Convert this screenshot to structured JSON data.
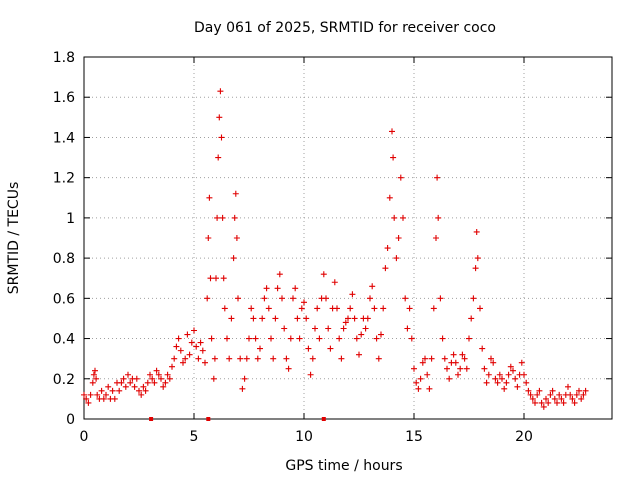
{
  "chart_data": {
    "type": "scatter",
    "title": "Day 061 of 2025, SRMTID for receiver coco",
    "xlabel": "GPS time / hours",
    "ylabel": "SRMTID / TECUs",
    "xlim": [
      0,
      24
    ],
    "ylim": [
      0,
      1.8
    ],
    "xticks": [
      0,
      5,
      10,
      15,
      20
    ],
    "yticks": [
      0,
      0.2,
      0.4,
      0.6,
      0.8,
      1,
      1.2,
      1.4,
      1.6,
      1.8
    ],
    "grid": true,
    "marker": "+",
    "color": "#e00000",
    "series": [
      {
        "name": "SRMTID",
        "points": [
          [
            0.0,
            0.12
          ],
          [
            0.1,
            0.1
          ],
          [
            0.2,
            0.08
          ],
          [
            0.3,
            0.12
          ],
          [
            0.4,
            0.18
          ],
          [
            0.45,
            0.22
          ],
          [
            0.5,
            0.24
          ],
          [
            0.55,
            0.2
          ],
          [
            0.6,
            0.12
          ],
          [
            0.7,
            0.1
          ],
          [
            0.8,
            0.14
          ],
          [
            0.9,
            0.1
          ],
          [
            1.0,
            0.12
          ],
          [
            1.1,
            0.16
          ],
          [
            1.2,
            0.1
          ],
          [
            1.3,
            0.14
          ],
          [
            1.4,
            0.1
          ],
          [
            1.5,
            0.18
          ],
          [
            1.6,
            0.14
          ],
          [
            1.7,
            0.18
          ],
          [
            1.8,
            0.2
          ],
          [
            1.9,
            0.16
          ],
          [
            2.0,
            0.22
          ],
          [
            2.1,
            0.18
          ],
          [
            2.2,
            0.2
          ],
          [
            2.3,
            0.16
          ],
          [
            2.4,
            0.2
          ],
          [
            2.5,
            0.14
          ],
          [
            2.6,
            0.12
          ],
          [
            2.7,
            0.16
          ],
          [
            2.8,
            0.14
          ],
          [
            2.9,
            0.18
          ],
          [
            3.0,
            0.22
          ],
          [
            3.1,
            0.2
          ],
          [
            3.2,
            0.18
          ],
          [
            3.3,
            0.24
          ],
          [
            3.4,
            0.22
          ],
          [
            3.5,
            0.2
          ],
          [
            3.6,
            0.16
          ],
          [
            3.7,
            0.18
          ],
          [
            3.8,
            0.22
          ],
          [
            3.9,
            0.2
          ],
          [
            4.0,
            0.26
          ],
          [
            4.1,
            0.3
          ],
          [
            4.2,
            0.36
          ],
          [
            4.3,
            0.4
          ],
          [
            4.4,
            0.34
          ],
          [
            4.5,
            0.28
          ],
          [
            4.6,
            0.3
          ],
          [
            4.7,
            0.42
          ],
          [
            4.8,
            0.32
          ],
          [
            4.9,
            0.38
          ],
          [
            5.0,
            0.44
          ],
          [
            5.1,
            0.36
          ],
          [
            5.2,
            0.3
          ],
          [
            5.3,
            0.38
          ],
          [
            5.4,
            0.34
          ],
          [
            5.5,
            0.28
          ],
          [
            5.6,
            0.6
          ],
          [
            5.65,
            0.9
          ],
          [
            5.7,
            1.1
          ],
          [
            5.75,
            0.7
          ],
          [
            5.8,
            0.4
          ],
          [
            5.9,
            0.2
          ],
          [
            5.95,
            0.3
          ],
          [
            6.0,
            0.7
          ],
          [
            6.05,
            1.0
          ],
          [
            6.1,
            1.3
          ],
          [
            6.15,
            1.5
          ],
          [
            6.2,
            1.63
          ],
          [
            6.25,
            1.4
          ],
          [
            6.3,
            1.0
          ],
          [
            6.35,
            0.7
          ],
          [
            6.4,
            0.55
          ],
          [
            6.5,
            0.4
          ],
          [
            6.6,
            0.3
          ],
          [
            6.7,
            0.5
          ],
          [
            6.8,
            0.8
          ],
          [
            6.85,
            1.0
          ],
          [
            6.9,
            1.12
          ],
          [
            6.95,
            0.9
          ],
          [
            7.0,
            0.6
          ],
          [
            7.1,
            0.3
          ],
          [
            7.2,
            0.15
          ],
          [
            7.3,
            0.2
          ],
          [
            7.4,
            0.3
          ],
          [
            7.5,
            0.4
          ],
          [
            7.6,
            0.55
          ],
          [
            7.7,
            0.5
          ],
          [
            7.8,
            0.4
          ],
          [
            7.9,
            0.3
          ],
          [
            8.0,
            0.35
          ],
          [
            8.1,
            0.5
          ],
          [
            8.2,
            0.6
          ],
          [
            8.3,
            0.65
          ],
          [
            8.4,
            0.55
          ],
          [
            8.5,
            0.4
          ],
          [
            8.6,
            0.3
          ],
          [
            8.7,
            0.5
          ],
          [
            8.8,
            0.65
          ],
          [
            8.9,
            0.72
          ],
          [
            9.0,
            0.6
          ],
          [
            9.1,
            0.45
          ],
          [
            9.2,
            0.3
          ],
          [
            9.3,
            0.25
          ],
          [
            9.4,
            0.4
          ],
          [
            9.5,
            0.6
          ],
          [
            9.6,
            0.65
          ],
          [
            9.7,
            0.5
          ],
          [
            9.8,
            0.4
          ],
          [
            9.9,
            0.55
          ],
          [
            10.0,
            0.58
          ],
          [
            10.1,
            0.5
          ],
          [
            10.2,
            0.35
          ],
          [
            10.3,
            0.22
          ],
          [
            10.4,
            0.3
          ],
          [
            10.5,
            0.45
          ],
          [
            10.6,
            0.55
          ],
          [
            10.7,
            0.4
          ],
          [
            10.8,
            0.6
          ],
          [
            10.9,
            0.72
          ],
          [
            11.0,
            0.6
          ],
          [
            11.1,
            0.45
          ],
          [
            11.2,
            0.35
          ],
          [
            11.3,
            0.55
          ],
          [
            11.4,
            0.68
          ],
          [
            11.5,
            0.55
          ],
          [
            11.6,
            0.4
          ],
          [
            11.7,
            0.3
          ],
          [
            11.8,
            0.45
          ],
          [
            11.9,
            0.48
          ],
          [
            12.0,
            0.5
          ],
          [
            12.1,
            0.55
          ],
          [
            12.2,
            0.62
          ],
          [
            12.3,
            0.5
          ],
          [
            12.4,
            0.4
          ],
          [
            12.5,
            0.32
          ],
          [
            12.6,
            0.42
          ],
          [
            12.7,
            0.5
          ],
          [
            12.8,
            0.45
          ],
          [
            12.9,
            0.5
          ],
          [
            13.0,
            0.6
          ],
          [
            13.1,
            0.66
          ],
          [
            13.2,
            0.55
          ],
          [
            13.3,
            0.4
          ],
          [
            13.4,
            0.3
          ],
          [
            13.5,
            0.42
          ],
          [
            13.6,
            0.55
          ],
          [
            13.7,
            0.75
          ],
          [
            13.8,
            0.85
          ],
          [
            13.9,
            1.1
          ],
          [
            14.0,
            1.43
          ],
          [
            14.05,
            1.3
          ],
          [
            14.1,
            1.0
          ],
          [
            14.2,
            0.8
          ],
          [
            14.3,
            0.9
          ],
          [
            14.4,
            1.2
          ],
          [
            14.5,
            1.0
          ],
          [
            14.6,
            0.6
          ],
          [
            14.7,
            0.45
          ],
          [
            14.8,
            0.55
          ],
          [
            14.9,
            0.4
          ],
          [
            15.0,
            0.25
          ],
          [
            15.1,
            0.18
          ],
          [
            15.2,
            0.15
          ],
          [
            15.3,
            0.2
          ],
          [
            15.4,
            0.28
          ],
          [
            15.5,
            0.3
          ],
          [
            15.6,
            0.22
          ],
          [
            15.7,
            0.15
          ],
          [
            15.8,
            0.3
          ],
          [
            15.9,
            0.55
          ],
          [
            16.0,
            0.9
          ],
          [
            16.05,
            1.2
          ],
          [
            16.1,
            1.0
          ],
          [
            16.2,
            0.6
          ],
          [
            16.3,
            0.4
          ],
          [
            16.4,
            0.3
          ],
          [
            16.5,
            0.25
          ],
          [
            16.6,
            0.2
          ],
          [
            16.7,
            0.28
          ],
          [
            16.8,
            0.32
          ],
          [
            16.9,
            0.28
          ],
          [
            17.0,
            0.22
          ],
          [
            17.1,
            0.25
          ],
          [
            17.2,
            0.32
          ],
          [
            17.3,
            0.3
          ],
          [
            17.4,
            0.25
          ],
          [
            17.5,
            0.4
          ],
          [
            17.6,
            0.5
          ],
          [
            17.7,
            0.6
          ],
          [
            17.8,
            0.75
          ],
          [
            17.85,
            0.93
          ],
          [
            17.9,
            0.8
          ],
          [
            18.0,
            0.55
          ],
          [
            18.1,
            0.35
          ],
          [
            18.2,
            0.25
          ],
          [
            18.3,
            0.18
          ],
          [
            18.4,
            0.22
          ],
          [
            18.5,
            0.3
          ],
          [
            18.6,
            0.28
          ],
          [
            18.7,
            0.2
          ],
          [
            18.8,
            0.18
          ],
          [
            18.9,
            0.22
          ],
          [
            19.0,
            0.2
          ],
          [
            19.1,
            0.15
          ],
          [
            19.2,
            0.18
          ],
          [
            19.3,
            0.22
          ],
          [
            19.4,
            0.26
          ],
          [
            19.5,
            0.24
          ],
          [
            19.6,
            0.2
          ],
          [
            19.7,
            0.16
          ],
          [
            19.8,
            0.22
          ],
          [
            19.9,
            0.28
          ],
          [
            20.0,
            0.22
          ],
          [
            20.1,
            0.18
          ],
          [
            20.2,
            0.14
          ],
          [
            20.3,
            0.12
          ],
          [
            20.4,
            0.1
          ],
          [
            20.5,
            0.08
          ],
          [
            20.6,
            0.12
          ],
          [
            20.7,
            0.14
          ],
          [
            20.8,
            0.08
          ],
          [
            20.9,
            0.06
          ],
          [
            21.0,
            0.1
          ],
          [
            21.1,
            0.08
          ],
          [
            21.2,
            0.12
          ],
          [
            21.3,
            0.14
          ],
          [
            21.4,
            0.1
          ],
          [
            21.5,
            0.08
          ],
          [
            21.6,
            0.12
          ],
          [
            21.7,
            0.1
          ],
          [
            21.8,
            0.08
          ],
          [
            21.9,
            0.12
          ],
          [
            22.0,
            0.16
          ],
          [
            22.1,
            0.12
          ],
          [
            22.2,
            0.1
          ],
          [
            22.3,
            0.08
          ],
          [
            22.4,
            0.12
          ],
          [
            22.5,
            0.14
          ],
          [
            22.6,
            0.1
          ],
          [
            22.7,
            0.12
          ],
          [
            22.8,
            0.14
          ]
        ]
      }
    ],
    "gap_markers_x": [
      3.05,
      5.65,
      10.9
    ]
  }
}
